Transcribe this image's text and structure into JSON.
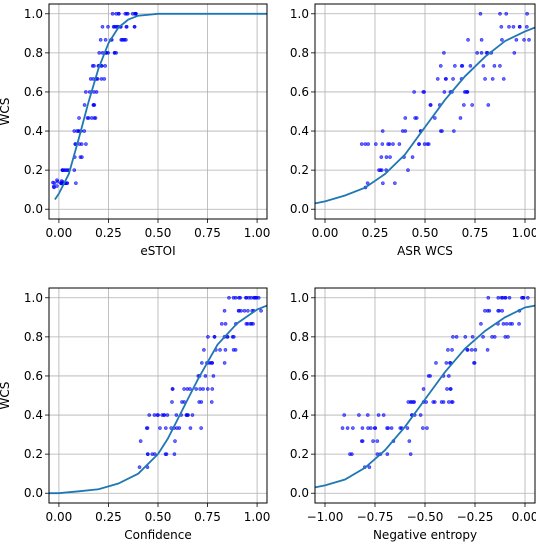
{
  "chart_data": [
    {
      "type": "scatter",
      "xlabel": "eSTOI",
      "ylabel": "WCS",
      "xlim": [
        -0.05,
        1.05
      ],
      "ylim": [
        -0.05,
        1.05
      ],
      "xticks": [
        "0.00",
        "0.25",
        "0.50",
        "0.75",
        "1.00"
      ],
      "yticks": [
        "0.0",
        "0.2",
        "0.4",
        "0.6",
        "0.8",
        "1.0"
      ],
      "grid": true,
      "colors": {
        "points": "#0000ff",
        "curve": "#1f77b4"
      },
      "fit_curve": {
        "x": [
          -0.02,
          0.0,
          0.05,
          0.1,
          0.15,
          0.2,
          0.25,
          0.3,
          0.35,
          0.4,
          0.5,
          0.6,
          0.8,
          1.05
        ],
        "y": [
          0.05,
          0.08,
          0.18,
          0.36,
          0.55,
          0.72,
          0.85,
          0.93,
          0.97,
          0.99,
          1.0,
          1.0,
          1.0,
          1.0
        ]
      },
      "scatter": {
        "x_center": [
          0.0,
          0.05,
          0.1,
          0.15,
          0.2,
          0.25,
          0.3,
          0.35
        ],
        "y_center": [
          0.08,
          0.18,
          0.36,
          0.55,
          0.72,
          0.85,
          0.93,
          0.97
        ],
        "x_spread": 0.04,
        "y_spread": 0.1,
        "points_per_bin": 14
      }
    },
    {
      "type": "scatter",
      "xlabel": "ASR WCS",
      "ylabel": "",
      "xlim": [
        -0.05,
        1.05
      ],
      "ylim": [
        -0.05,
        1.05
      ],
      "xticks": [
        "0.00",
        "0.25",
        "0.50",
        "0.75",
        "1.00"
      ],
      "yticks": [
        "0.0",
        "0.2",
        "0.4",
        "0.6",
        "0.8",
        "1.0"
      ],
      "grid": true,
      "colors": {
        "points": "#0000ff",
        "curve": "#1f77b4"
      },
      "fit_curve": {
        "x": [
          -0.05,
          0.0,
          0.1,
          0.2,
          0.3,
          0.4,
          0.5,
          0.6,
          0.7,
          0.8,
          0.9,
          1.0,
          1.05
        ],
        "y": [
          0.03,
          0.04,
          0.07,
          0.11,
          0.18,
          0.28,
          0.42,
          0.56,
          0.68,
          0.78,
          0.86,
          0.91,
          0.93
        ]
      },
      "scatter": {
        "x_center": [
          0.25,
          0.35,
          0.45,
          0.55,
          0.65,
          0.75,
          0.85,
          0.95
        ],
        "y_center": [
          0.2,
          0.3,
          0.4,
          0.5,
          0.6,
          0.72,
          0.85,
          0.95
        ],
        "x_spread": 0.08,
        "y_spread": 0.18,
        "points_per_bin": 12
      }
    },
    {
      "type": "scatter",
      "xlabel": "Confidence",
      "ylabel": "WCS",
      "xlim": [
        -0.05,
        1.05
      ],
      "ylim": [
        -0.05,
        1.05
      ],
      "xticks": [
        "0.00",
        "0.25",
        "0.50",
        "0.75",
        "1.00"
      ],
      "yticks": [
        "0.0",
        "0.2",
        "0.4",
        "0.6",
        "0.8",
        "1.0"
      ],
      "grid": true,
      "colors": {
        "points": "#0000ff",
        "curve": "#1f77b4"
      },
      "fit_curve": {
        "x": [
          -0.05,
          0.0,
          0.1,
          0.2,
          0.3,
          0.4,
          0.5,
          0.55,
          0.6,
          0.65,
          0.7,
          0.75,
          0.8,
          0.9,
          1.0,
          1.05
        ],
        "y": [
          0.0,
          0.0,
          0.01,
          0.02,
          0.05,
          0.1,
          0.2,
          0.28,
          0.38,
          0.48,
          0.58,
          0.67,
          0.76,
          0.87,
          0.94,
          0.96
        ]
      },
      "scatter": {
        "x_center": [
          0.45,
          0.55,
          0.62,
          0.68,
          0.74,
          0.8,
          0.86,
          0.93,
          0.98
        ],
        "y_center": [
          0.25,
          0.3,
          0.38,
          0.48,
          0.6,
          0.72,
          0.84,
          0.93,
          0.98
        ],
        "x_spread": 0.05,
        "y_spread": 0.14,
        "points_per_bin": 12
      }
    },
    {
      "type": "scatter",
      "xlabel": "Negative entropy",
      "ylabel": "",
      "xlim": [
        -1.05,
        0.05
      ],
      "ylim": [
        -0.05,
        1.05
      ],
      "xticks": [
        "−1.00",
        "−0.75",
        "−0.50",
        "−0.25",
        "0.00"
      ],
      "yticks": [
        "0.0",
        "0.2",
        "0.4",
        "0.6",
        "0.8",
        "1.0"
      ],
      "grid": true,
      "colors": {
        "points": "#0000ff",
        "curve": "#1f77b4"
      },
      "fit_curve": {
        "x": [
          -1.05,
          -1.0,
          -0.9,
          -0.8,
          -0.7,
          -0.6,
          -0.5,
          -0.4,
          -0.3,
          -0.2,
          -0.1,
          0.0,
          0.05
        ],
        "y": [
          0.03,
          0.04,
          0.07,
          0.13,
          0.22,
          0.34,
          0.48,
          0.62,
          0.74,
          0.83,
          0.9,
          0.95,
          0.96
        ]
      },
      "scatter": {
        "x_center": [
          -0.85,
          -0.72,
          -0.62,
          -0.52,
          -0.42,
          -0.32,
          -0.22,
          -0.12,
          -0.05
        ],
        "y_center": [
          0.25,
          0.25,
          0.35,
          0.45,
          0.58,
          0.7,
          0.82,
          0.92,
          0.97
        ],
        "x_spread": 0.07,
        "y_spread": 0.15,
        "points_per_bin": 12
      }
    }
  ]
}
